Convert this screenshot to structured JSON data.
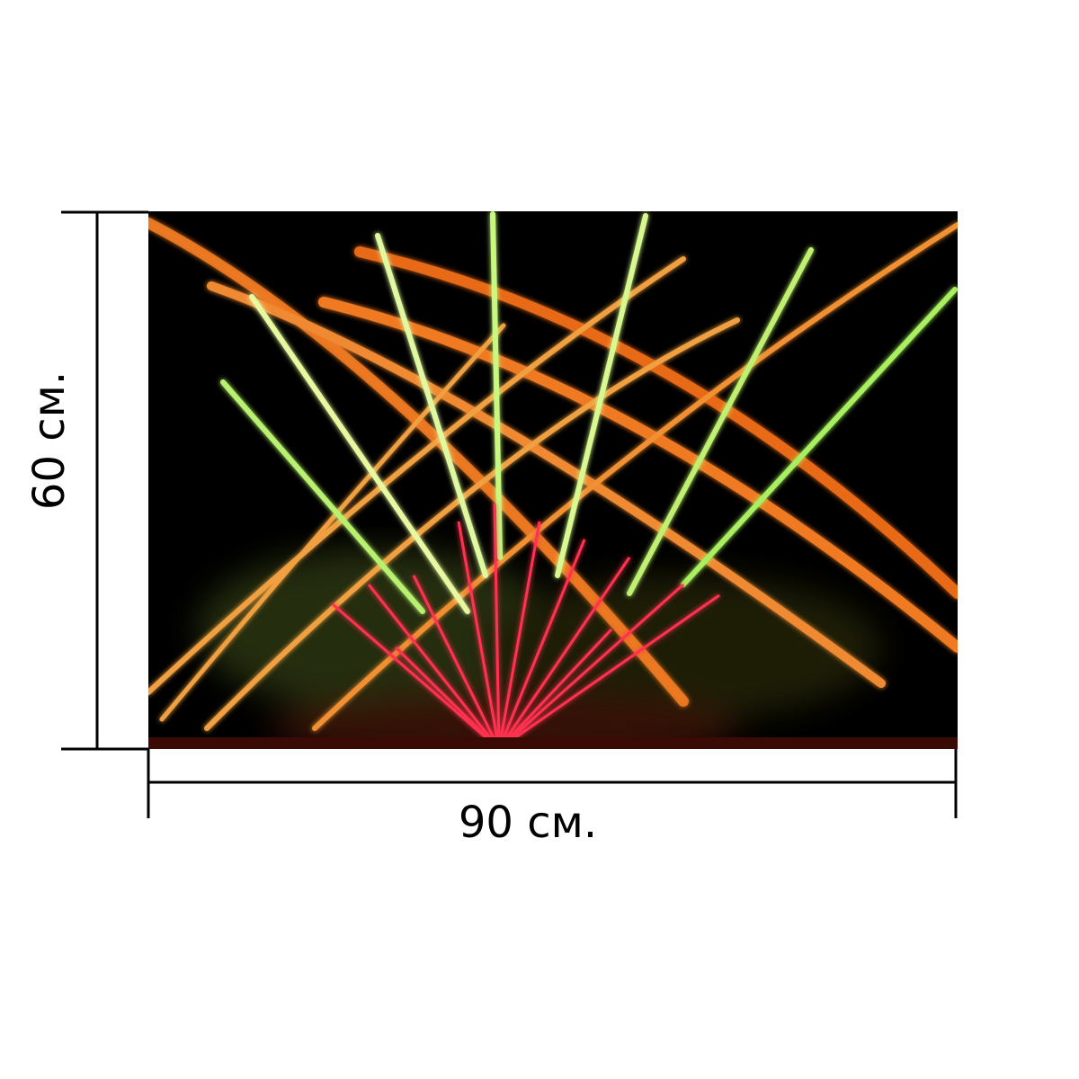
{
  "height_label": "60 см.",
  "width_label": "90 см."
}
